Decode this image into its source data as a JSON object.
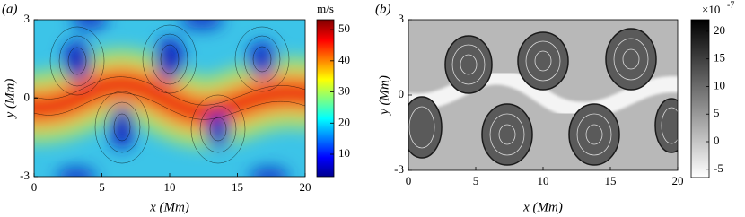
{
  "chart_data": [
    {
      "type": "heatmap",
      "panel_label": "(a)",
      "xlabel": "x (Mm)",
      "ylabel": "y (Mm)",
      "xlim": [
        0,
        20
      ],
      "xticks": [
        0,
        5,
        10,
        15,
        20
      ],
      "ylim": [
        -3,
        3
      ],
      "yticks": [
        -3,
        0,
        3
      ],
      "colorbar": {
        "label": "m/s",
        "lim": [
          2.8,
          53.2
        ],
        "ticks": [
          10,
          20,
          30,
          40,
          50
        ],
        "colormap": "jet"
      }
    },
    {
      "type": "heatmap",
      "panel_label": "(b)",
      "xlabel": "x (Mm)",
      "ylabel": "y (Mm)",
      "xlim": [
        0,
        20
      ],
      "xticks": [
        0,
        5,
        10,
        15,
        20
      ],
      "ylim": [
        -3,
        3
      ],
      "yticks": [
        -3,
        0,
        3
      ],
      "colorbar": {
        "multiplier": "×10",
        "exponent": "-7",
        "lim": [
          -6.5,
          22.1
        ],
        "ticks": [
          -5,
          0,
          5,
          10,
          15,
          20
        ],
        "colormap": "gray"
      }
    }
  ]
}
